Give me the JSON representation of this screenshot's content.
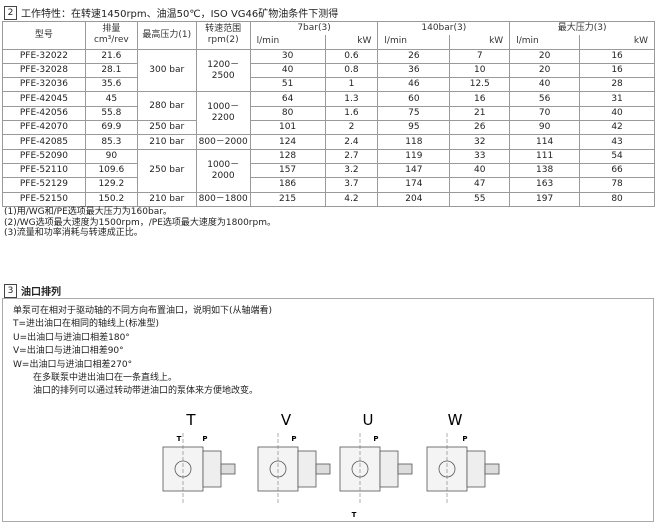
{
  "section2": {
    "number": "2",
    "title": "工作特性：在转速1450rpm、油温50℃，ISO VG46矿物油条件下测得"
  },
  "table": {
    "columns": [
      [
        "型号"
      ],
      [
        "排量",
        "cm³/rev"
      ],
      [
        "最高压力(1)"
      ],
      [
        "转速范围",
        "rpm(2)"
      ]
    ],
    "groups": [
      "7bar(3)",
      "140bar(3)",
      "最大压力(3)"
    ],
    "subheaders": [
      "l/min",
      "kW"
    ],
    "rows": [
      {
        "model": "PFE-32022",
        "displacement": 21.6,
        "pressure": "300 bar",
        "speed": "1200－2500",
        "values": [
          30,
          0.6,
          26,
          7,
          20,
          16
        ]
      },
      {
        "model": "PFE-32028",
        "displacement": 28.1,
        "pressure": null,
        "speed": null,
        "values": [
          40,
          0.8,
          36,
          10,
          20,
          16
        ]
      },
      {
        "model": "PFE-32036",
        "displacement": 35.6,
        "pressure": null,
        "speed": null,
        "values": [
          51,
          1,
          46,
          12.5,
          40,
          28
        ]
      },
      {
        "model": "PFE-42045",
        "displacement": 45,
        "pressure": "280 bar",
        "speed": "1000－2200",
        "values": [
          64,
          1.3,
          60,
          16,
          56,
          31
        ]
      },
      {
        "model": "PFE-42056",
        "displacement": 55.8,
        "pressure": null,
        "speed": null,
        "values": [
          80,
          1.6,
          75,
          21,
          70,
          40
        ]
      },
      {
        "model": "PFE-42070",
        "displacement": 69.9,
        "pressure": "250 bar",
        "speed": null,
        "values": [
          101,
          2,
          95,
          26,
          90,
          42
        ]
      },
      {
        "model": "PFE-42085",
        "displacement": 85.3,
        "pressure": "210 bar",
        "speed": "800－2000",
        "values": [
          124,
          2.4,
          118,
          32,
          114,
          43
        ]
      },
      {
        "model": "PFE-52090",
        "displacement": 90,
        "pressure": "250 bar",
        "speed": "1000－2000",
        "values": [
          128,
          2.7,
          119,
          33,
          111,
          54
        ]
      },
      {
        "model": "PFE-52110",
        "displacement": 109.6,
        "pressure": null,
        "speed": null,
        "values": [
          157,
          3.2,
          147,
          40,
          138,
          66
        ]
      },
      {
        "model": "PFE-52129",
        "displacement": 129.2,
        "pressure": null,
        "speed": null,
        "values": [
          186,
          3.7,
          174,
          47,
          163,
          78
        ]
      },
      {
        "model": "PFE-52150",
        "displacement": 150.2,
        "pressure": "210 bar",
        "speed": "800－1800",
        "values": [
          215,
          4.2,
          204,
          55,
          197,
          80
        ]
      }
    ]
  },
  "notes": [
    "(1)用/WG和/PE选项最大压力为160bar。",
    "(2)/WG选项最大速度为1500rpm，/PE选项最大速度为1800rpm。",
    "(3)流量和功率消耗与转速成正比。"
  ],
  "section3": {
    "number": "3",
    "title": "油口排列"
  },
  "description": [
    "单泵可在相对于驱动轴的不同方向布置油口，说明如下(从轴端看)",
    "T=进出油口在相同的轴线上(标准型)",
    "U=出油口与进油口相差180°",
    "V=出油口与进油口相差90°",
    "W=出油口与进油口相差270°",
    "在多联泵中进出油口在一条直线上。",
    "油口的排列可以通过转动带进油口的泵体来方便地改变。"
  ],
  "diagrams": [
    {
      "label": "T",
      "ports": [
        "T",
        "P"
      ]
    },
    {
      "label": "V",
      "ports": [
        "P"
      ]
    },
    {
      "label": "U",
      "ports": [
        "P",
        "T"
      ]
    },
    {
      "label": "W",
      "ports": [
        "P"
      ]
    }
  ]
}
